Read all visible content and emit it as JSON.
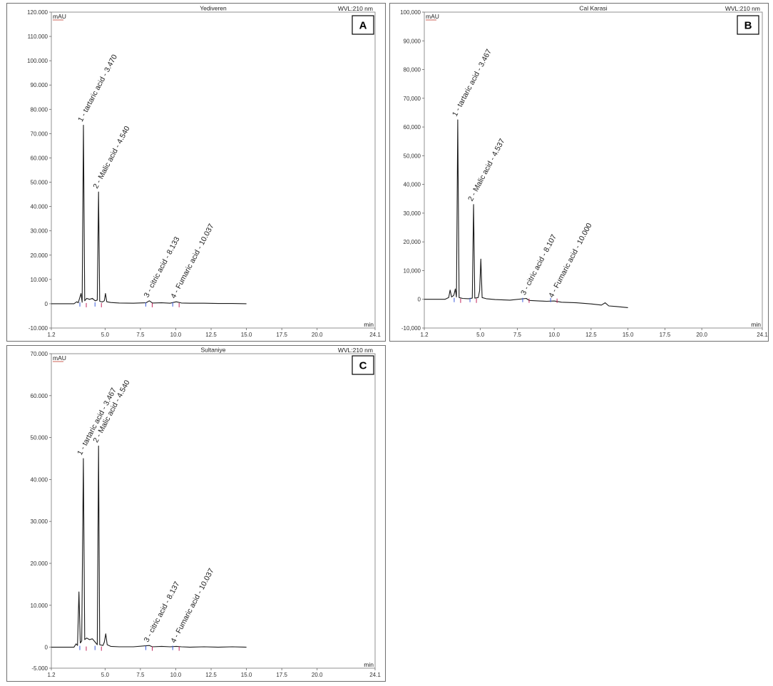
{
  "chart_data": [
    {
      "type": "line",
      "panel_letter": "A",
      "title": "Yediveren",
      "wavelength": "WVL:210 nm",
      "ylabel": "mAU",
      "xlabel": "min",
      "xlim": [
        1.2,
        24.1
      ],
      "ylim": [
        -10000,
        120000
      ],
      "x_ticks": [
        "1.2",
        "5.0",
        "7.5",
        "10.0",
        "12.5",
        "15.0",
        "17.5",
        "20.0",
        "24.1"
      ],
      "x_tick_values": [
        1.2,
        5.0,
        7.5,
        10.0,
        12.5,
        15.0,
        17.5,
        20.0,
        24.1
      ],
      "y_ticks": [
        "120.000",
        "110.000",
        "100.000",
        "90.000",
        "80.000",
        "70.000",
        "60.000",
        "50.000",
        "40.000",
        "30.000",
        "20.000",
        "10.000",
        "0",
        "-10.000"
      ],
      "y_tick_values": [
        120000,
        110000,
        100000,
        90000,
        80000,
        70000,
        60000,
        50000,
        40000,
        30000,
        20000,
        10000,
        0,
        -10000
      ],
      "peak_labels": [
        "1 - tartaric acid - 3.470",
        "2 - Malic acid - 4.540",
        "3 - citric acid - 8.133",
        "4 - Fumaric acid - 10.037"
      ],
      "labeled_peaks": [
        {
          "rt": 3.47,
          "height": 73500
        },
        {
          "rt": 4.54,
          "height": 46000
        },
        {
          "rt": 8.133,
          "height": 1200
        },
        {
          "rt": 10.037,
          "height": 800
        }
      ],
      "trace": [
        [
          1.2,
          0
        ],
        [
          2.8,
          0
        ],
        [
          3.0,
          800
        ],
        [
          3.1,
          400
        ],
        [
          3.3,
          4200
        ],
        [
          3.38,
          600
        ],
        [
          3.47,
          73500
        ],
        [
          3.56,
          1200
        ],
        [
          3.7,
          2200
        ],
        [
          3.9,
          1800
        ],
        [
          4.1,
          2200
        ],
        [
          4.3,
          1200
        ],
        [
          4.45,
          1500
        ],
        [
          4.54,
          46000
        ],
        [
          4.62,
          1000
        ],
        [
          4.8,
          700
        ],
        [
          4.95,
          1200
        ],
        [
          5.03,
          4200
        ],
        [
          5.12,
          800
        ],
        [
          5.4,
          500
        ],
        [
          6.0,
          300
        ],
        [
          7.0,
          200
        ],
        [
          7.9,
          400
        ],
        [
          8.133,
          1200
        ],
        [
          8.35,
          300
        ],
        [
          9.0,
          400
        ],
        [
          9.6,
          200
        ],
        [
          10.037,
          800
        ],
        [
          10.4,
          300
        ],
        [
          11.0,
          200
        ],
        [
          12.0,
          200
        ],
        [
          13.0,
          100
        ],
        [
          14.0,
          100
        ],
        [
          15.0,
          0
        ]
      ]
    },
    {
      "type": "line",
      "panel_letter": "B",
      "title": "Cal Karasi",
      "wavelength": "WVL:210 nm",
      "ylabel": "mAU",
      "xlabel": "min",
      "xlim": [
        1.2,
        24.1
      ],
      "ylim": [
        -10000,
        100000
      ],
      "x_ticks": [
        "1.2",
        "5.0",
        "7.5",
        "10.0",
        "12.5",
        "15.0",
        "17.5",
        "20.0",
        "24.1"
      ],
      "x_tick_values": [
        1.2,
        5.0,
        7.5,
        10.0,
        12.5,
        15.0,
        17.5,
        20.0,
        24.1
      ],
      "y_ticks": [
        "100,000",
        "90,000",
        "80,000",
        "70,000",
        "60,000",
        "50,000",
        "40,000",
        "30,000",
        "20,000",
        "10,000",
        "0",
        "-10,000"
      ],
      "y_tick_values": [
        100000,
        90000,
        80000,
        70000,
        60000,
        50000,
        40000,
        30000,
        20000,
        10000,
        0,
        -10000
      ],
      "peak_labels": [
        "1 - tartaric acid - 3.467",
        "2 - Malic acid - 4.537",
        "3 - citric acid - 8.107",
        "4 - Fumaric acid - 10.000"
      ],
      "labeled_peaks": [
        {
          "rt": 3.467,
          "height": 62500
        },
        {
          "rt": 4.537,
          "height": 33000
        },
        {
          "rt": 8.107,
          "height": 300
        },
        {
          "rt": 10.0,
          "height": -600
        }
      ],
      "trace": [
        [
          1.2,
          0
        ],
        [
          2.6,
          0
        ],
        [
          2.85,
          600
        ],
        [
          2.95,
          3200
        ],
        [
          3.05,
          800
        ],
        [
          3.2,
          1400
        ],
        [
          3.3,
          3600
        ],
        [
          3.38,
          800
        ],
        [
          3.467,
          62500
        ],
        [
          3.56,
          600
        ],
        [
          3.8,
          300
        ],
        [
          4.2,
          200
        ],
        [
          4.45,
          400
        ],
        [
          4.537,
          33000
        ],
        [
          4.62,
          400
        ],
        [
          4.85,
          600
        ],
        [
          4.95,
          3000
        ],
        [
          5.03,
          14000
        ],
        [
          5.12,
          600
        ],
        [
          5.4,
          200
        ],
        [
          6.0,
          -100
        ],
        [
          7.0,
          -300
        ],
        [
          8.107,
          300
        ],
        [
          8.3,
          -400
        ],
        [
          9.0,
          -600
        ],
        [
          9.5,
          -700
        ],
        [
          10.0,
          -600
        ],
        [
          10.5,
          -1000
        ],
        [
          11.5,
          -1200
        ],
        [
          12.5,
          -1600
        ],
        [
          13.2,
          -2000
        ],
        [
          13.45,
          -1200
        ],
        [
          13.7,
          -2300
        ],
        [
          14.2,
          -2500
        ],
        [
          15.0,
          -2900
        ]
      ]
    },
    {
      "type": "line",
      "panel_letter": "C",
      "title": "Sultaniye",
      "wavelength": "WVL:210 nm",
      "ylabel": "mAU",
      "xlabel": "min",
      "xlim": [
        1.2,
        24.1
      ],
      "ylim": [
        -5000,
        70000
      ],
      "x_ticks": [
        "1.2",
        "5.0",
        "7.5",
        "10.0",
        "12.5",
        "15.0",
        "17.5",
        "20.0",
        "24.1"
      ],
      "x_tick_values": [
        1.2,
        5.0,
        7.5,
        10.0,
        12.5,
        15.0,
        17.5,
        20.0,
        24.1
      ],
      "y_ticks": [
        "70.000",
        "60.000",
        "50.000",
        "40.000",
        "30.000",
        "20.000",
        "10.000",
        "0",
        "-5.000"
      ],
      "y_tick_values": [
        70000,
        60000,
        50000,
        40000,
        30000,
        20000,
        10000,
        0,
        -5000
      ],
      "peak_labels": [
        "1 - tartaric acid - 3.467",
        "2 - Malic acid - 4.540",
        "3 - citric acid - 8.137",
        "4 - Fumaric acid - 10.037"
      ],
      "labeled_peaks": [
        {
          "rt": 3.467,
          "height": 45000
        },
        {
          "rt": 4.54,
          "height": 48000
        },
        {
          "rt": 8.137,
          "height": 400
        },
        {
          "rt": 10.037,
          "height": 200
        }
      ],
      "trace": [
        [
          1.2,
          0
        ],
        [
          2.8,
          0
        ],
        [
          2.95,
          800
        ],
        [
          3.05,
          400
        ],
        [
          3.15,
          13200
        ],
        [
          3.25,
          1000
        ],
        [
          3.35,
          1500
        ],
        [
          3.467,
          45000
        ],
        [
          3.56,
          1800
        ],
        [
          3.7,
          2200
        ],
        [
          3.9,
          1800
        ],
        [
          4.1,
          2000
        ],
        [
          4.3,
          1200
        ],
        [
          4.45,
          600
        ],
        [
          4.54,
          48000
        ],
        [
          4.62,
          600
        ],
        [
          4.85,
          400
        ],
        [
          4.95,
          1200
        ],
        [
          5.05,
          3200
        ],
        [
          5.15,
          600
        ],
        [
          5.4,
          200
        ],
        [
          6.0,
          100
        ],
        [
          7.0,
          100
        ],
        [
          8.137,
          400
        ],
        [
          8.35,
          100
        ],
        [
          9.0,
          200
        ],
        [
          9.6,
          100
        ],
        [
          10.037,
          200
        ],
        [
          10.4,
          100
        ],
        [
          11.0,
          0
        ],
        [
          12.0,
          100
        ],
        [
          13.0,
          0
        ],
        [
          14.0,
          100
        ],
        [
          15.0,
          0
        ]
      ]
    }
  ]
}
